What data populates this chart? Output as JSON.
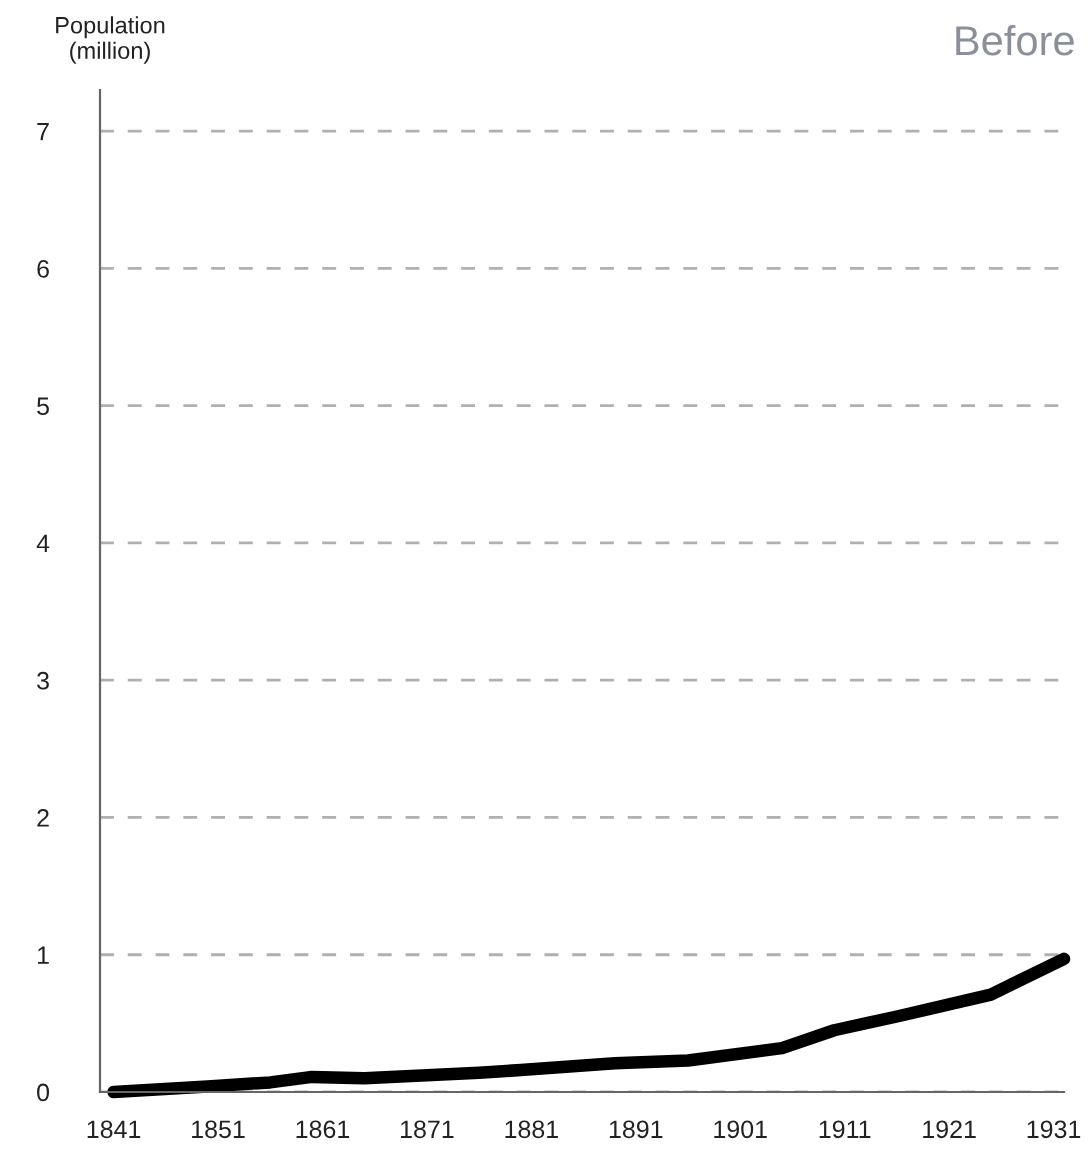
{
  "chart_data": {
    "type": "line",
    "title": "Before",
    "ylabel": "Population\n(million)",
    "x": [
      1841,
      1850,
      1856,
      1860,
      1865,
      1876,
      1880,
      1889,
      1896,
      1905,
      1910,
      1916,
      1925,
      1932
    ],
    "series": [
      {
        "color": "#000000",
        "values": [
          0,
          0.04,
          0.07,
          0.11,
          0.1,
          0.14,
          0.16,
          0.21,
          0.23,
          0.32,
          0.45,
          0.55,
          0.71,
          0.97
        ]
      }
    ],
    "xlim": [
      1839.7,
      1932
    ],
    "ylim": [
      0,
      7.3
    ],
    "xticks": [
      1841,
      1851,
      1861,
      1871,
      1881,
      1891,
      1901,
      1911,
      1921,
      1931
    ],
    "yticks": [
      0,
      1,
      2,
      3,
      4,
      5,
      6,
      7
    ],
    "grid": "y",
    "line_style": "solid",
    "marker": "none",
    "legend": false
  }
}
